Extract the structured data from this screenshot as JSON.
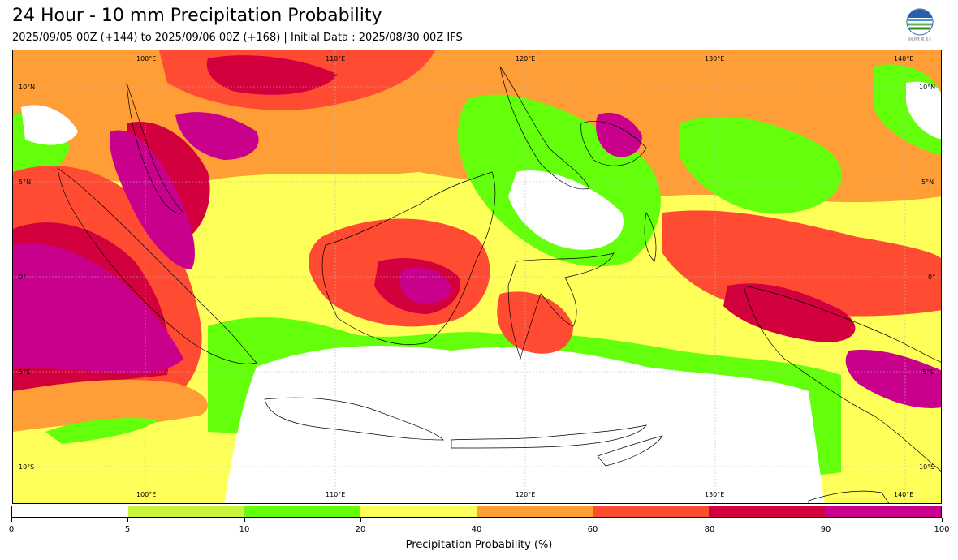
{
  "header": {
    "title": "24 Hour - 10 mm Precipitation Probability",
    "subtitle": "2025/09/05 00Z (+144) to 2025/09/06 00Z (+168) | Initial Data : 2025/08/30 00Z IFS",
    "logo_text": "BMKG"
  },
  "map": {
    "lon_labels_top": [
      "100°E",
      "110°E",
      "120°E",
      "130°E",
      "140°E"
    ],
    "lon_labels_bottom": [
      "100°E",
      "110°E",
      "120°E",
      "130°E",
      "140°E"
    ],
    "lat_labels_left": [
      "10°N",
      "5°N",
      "0°",
      "5°S",
      "10°S"
    ],
    "lat_labels_right": [
      "10°N",
      "5°N",
      "0°",
      "5°S",
      "10°S"
    ]
  },
  "colorbar": {
    "ticks": [
      "0",
      "5",
      "10",
      "20",
      "40",
      "60",
      "80",
      "90",
      "100"
    ],
    "colors": [
      "#ffffff",
      "#c8f53c",
      "#64ff0a",
      "#ffff5a",
      "#ff9d37",
      "#ff4b32",
      "#d2003c",
      "#c8008c"
    ],
    "label": "Precipitation Probability (%)"
  }
}
